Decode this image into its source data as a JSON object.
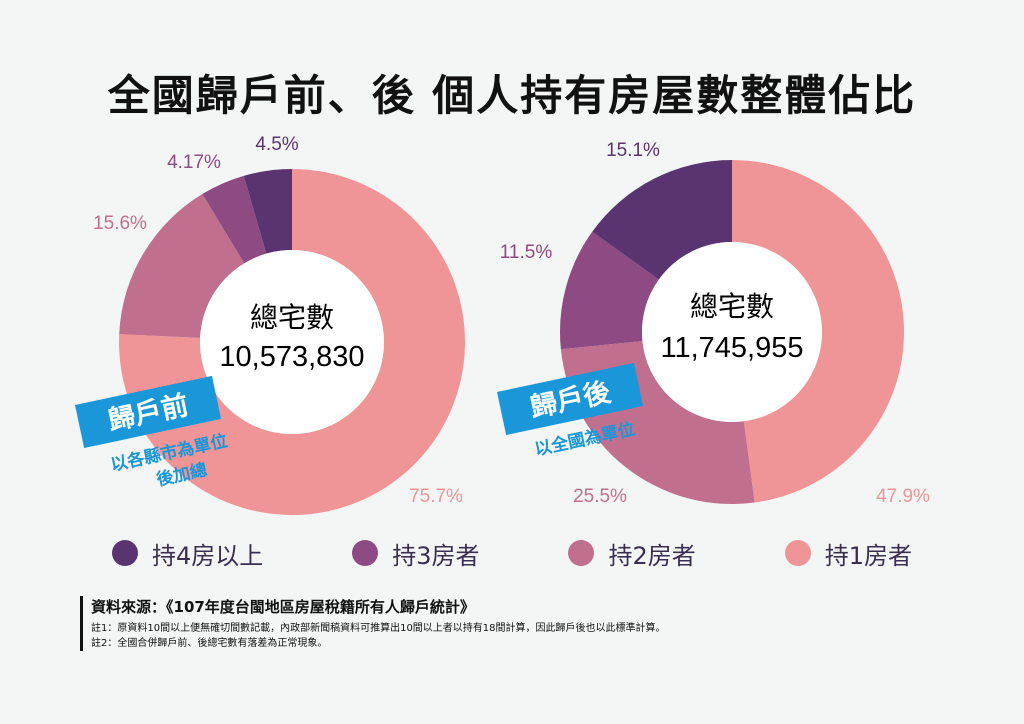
{
  "title": "全國歸戶前、後 個人持有房屋數整體佔比",
  "colors": {
    "four_plus": "#5a3470",
    "three": "#8e4a82",
    "two": "#c06f8e",
    "one": "#ef9597",
    "tag": "#1a97d8"
  },
  "legend": [
    {
      "label": "持4房以上",
      "color": "#5a3470"
    },
    {
      "label": "持3房者",
      "color": "#8e4a82"
    },
    {
      "label": "持2房者",
      "color": "#c06f8e"
    },
    {
      "label": "持1房者",
      "color": "#ef9597"
    }
  ],
  "chart_data": [
    {
      "type": "pie",
      "donut": true,
      "categories": [
        "持1房者",
        "持2房者",
        "持3房者",
        "持4房以上"
      ],
      "values": [
        75.7,
        15.6,
        4.17,
        4.5
      ],
      "value_labels": [
        "75.7%",
        "15.6%",
        "4.17%",
        "4.5%"
      ],
      "center_label": "總宅數",
      "center_value": "10,573,830",
      "tag": "歸戶前",
      "tag_sub": [
        "以各縣市為單位",
        "後加總"
      ]
    },
    {
      "type": "pie",
      "donut": true,
      "categories": [
        "持1房者",
        "持2房者",
        "持3房者",
        "持4房以上"
      ],
      "values": [
        47.9,
        25.5,
        11.5,
        15.1
      ],
      "value_labels": [
        "47.9%",
        "25.5%",
        "11.5%",
        "15.1%"
      ],
      "center_label": "總宅數",
      "center_value": "11,745,955",
      "tag": "歸戶後",
      "tag_sub": [
        "以全國為單位"
      ]
    }
  ],
  "footer": {
    "source": "資料來源：《107年度台閩地區房屋稅籍所有人歸戶統計》",
    "notes": [
      "註1：原資料10間以上便無確切間數記載，內政部新聞稿資料可推算出10間以上者以持有18間計算，因此歸戶後也以此標準計算。",
      "註2：全國合併歸戶前、後總宅數有落差為正常現象。"
    ]
  }
}
